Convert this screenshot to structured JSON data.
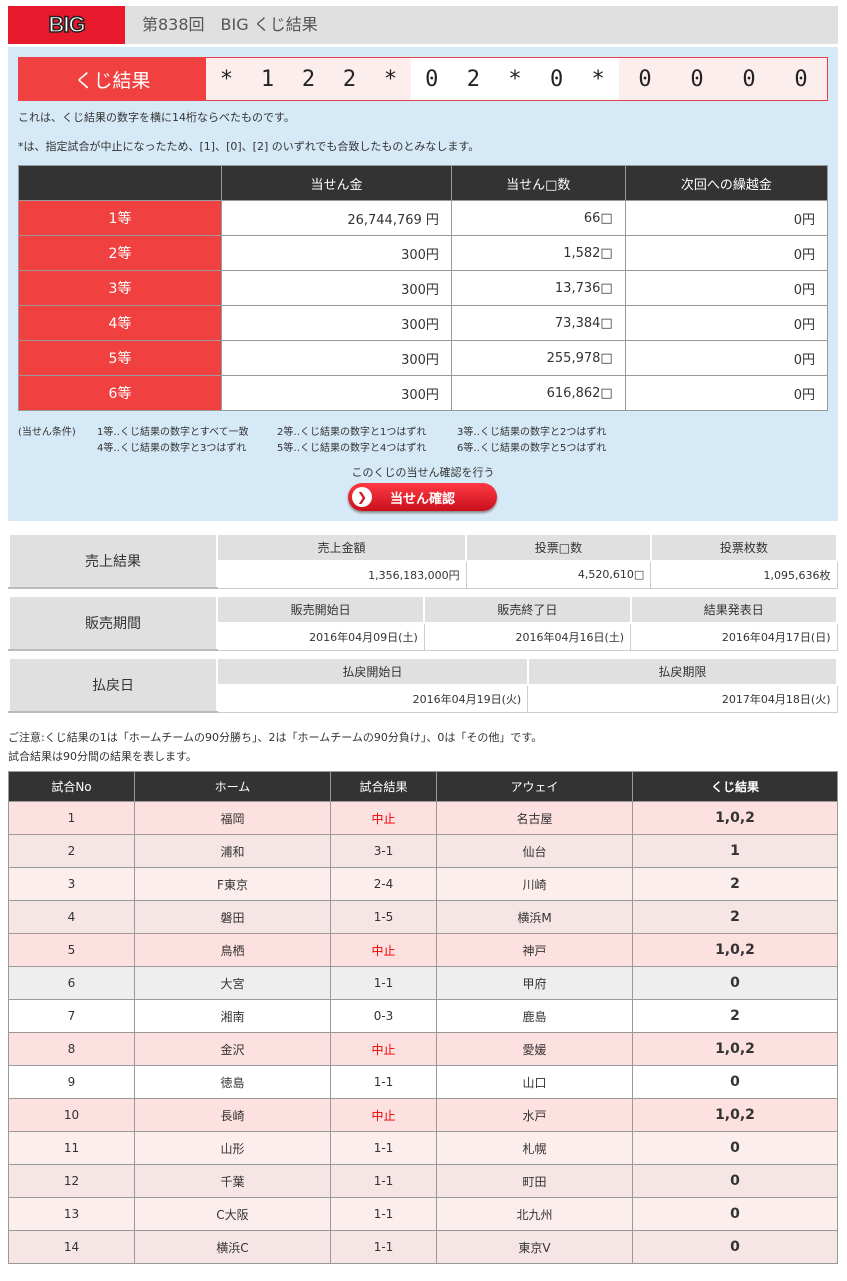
{
  "header": {
    "logo": "BIG",
    "title": "第838回　BIG くじ結果"
  },
  "result": {
    "label": "くじ結果",
    "groups": [
      [
        "*",
        "1",
        "2",
        "2",
        "*"
      ],
      [
        "0",
        "2",
        "*",
        "0",
        "*"
      ],
      [
        "0",
        "0",
        "0",
        "0"
      ]
    ],
    "note1": "これは、くじ結果の数字を横に14桁ならべたものです。",
    "note2": "*は、指定試合が中止になったため、[1]、[0]、[2] のいずれでも合致したものとみなします。"
  },
  "prizes": {
    "headers": [
      "",
      "当せん金",
      "当せん□数",
      "次回への繰越金"
    ],
    "rows": [
      [
        "1等",
        "26,744,769 円",
        "66□",
        "0円"
      ],
      [
        "2等",
        "300円",
        "1,582□",
        "0円"
      ],
      [
        "3等",
        "300円",
        "13,736□",
        "0円"
      ],
      [
        "4等",
        "300円",
        "73,384□",
        "0円"
      ],
      [
        "5等",
        "300円",
        "255,978□",
        "0円"
      ],
      [
        "6等",
        "300円",
        "616,862□",
        "0円"
      ]
    ]
  },
  "conditions": {
    "label": "(当せん条件)",
    "items": [
      "1等‥くじ結果の数字とすべて一致",
      "2等‥くじ結果の数字と1つはずれ",
      "3等‥くじ結果の数字と2つはずれ",
      "4等‥くじ結果の数字と3つはずれ",
      "5等‥くじ結果の数字と4つはずれ",
      "6等‥くじ結果の数字と5つはずれ"
    ]
  },
  "check": {
    "caption": "このくじの当せん確認を行う",
    "button": "当せん確認"
  },
  "sales": {
    "label": "売上結果",
    "headers": [
      "売上金額",
      "投票□数",
      "投票枚数"
    ],
    "values": [
      "1,356,183,000円",
      "4,520,610□",
      "1,095,636枚"
    ]
  },
  "period": {
    "label": "販売期間",
    "headers": [
      "販売開始日",
      "販売終了日",
      "結果発表日"
    ],
    "values": [
      "2016年04月09日(土)",
      "2016年04月16日(土)",
      "2016年04月17日(日)"
    ]
  },
  "payout": {
    "label": "払戻日",
    "headers": [
      "払戻開始日",
      "払戻期限"
    ],
    "values": [
      "2016年04月19日(火)",
      "2017年04月18日(火)"
    ]
  },
  "notes": [
    "ご注意:くじ結果の1は「ホームチームの90分勝ち」、2は「ホームチームの90分負け」、0は「その他」です。",
    "試合結果は90分間の結果を表します。"
  ],
  "matches": {
    "headers": [
      "試合No",
      "ホーム",
      "試合結果",
      "アウェイ",
      "くじ結果"
    ],
    "rows": [
      [
        "1",
        "福岡",
        "中止",
        "名古屋",
        "1,0,2"
      ],
      [
        "2",
        "浦和",
        "3-1",
        "仙台",
        "1"
      ],
      [
        "3",
        "F東京",
        "2-4",
        "川崎",
        "2"
      ],
      [
        "4",
        "磐田",
        "1-5",
        "横浜M",
        "2"
      ],
      [
        "5",
        "鳥栖",
        "中止",
        "神戸",
        "1,0,2"
      ],
      [
        "6",
        "大宮",
        "1-1",
        "甲府",
        "0"
      ],
      [
        "7",
        "湘南",
        "0-3",
        "鹿島",
        "2"
      ],
      [
        "8",
        "金沢",
        "中止",
        "愛媛",
        "1,0,2"
      ],
      [
        "9",
        "徳島",
        "1-1",
        "山口",
        "0"
      ],
      [
        "10",
        "長崎",
        "中止",
        "水戸",
        "1,0,2"
      ],
      [
        "11",
        "山形",
        "1-1",
        "札幌",
        "0"
      ],
      [
        "12",
        "千葉",
        "1-1",
        "町田",
        "0"
      ],
      [
        "13",
        "C大阪",
        "1-1",
        "北九州",
        "0"
      ],
      [
        "14",
        "横浜C",
        "1-1",
        "東京V",
        "0"
      ]
    ],
    "row_colors": [
      "#fde0e0",
      "#f5e5e5",
      "#fdeeee",
      "#f5e5e5",
      "#fde0e0",
      "#eeeeee",
      "#ffffff",
      "#fde0e0",
      "#ffffff",
      "#fde0e0",
      "#fdeeee",
      "#f5e5e5",
      "#fdeeee",
      "#f5e5e5"
    ]
  }
}
